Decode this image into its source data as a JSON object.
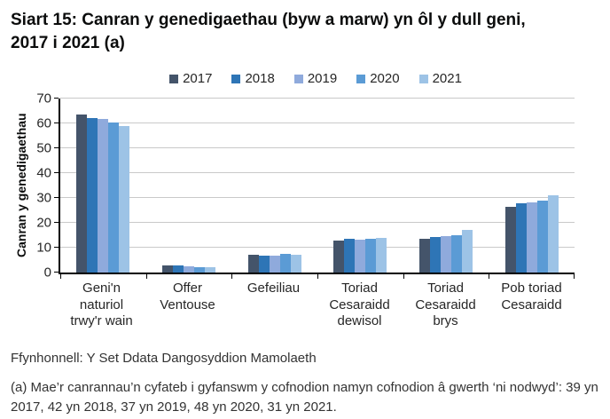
{
  "page": {
    "title": "Siart 15: Canran y genedigaethau (byw a marw) yn ôl y dull geni, 2017 i 2021 (a)",
    "source": "Ffynhonnell: Y Set Ddata Dangosyddion Mamolaeth",
    "footnote": "(a) Mae’r canrannau’n cyfateb i gyfanswm y cofnodion namyn cofnodion â gwerth ‘ni nodwyd’: 39 yn 2017, 42 yn 2018, 37 yn 2019, 48 yn 2020, 31 yn 2021."
  },
  "chart_data": {
    "type": "bar",
    "title": "Siart 15: Canran y genedigaethau (byw a marw) yn ôl y dull geni, 2017 i 2021 (a)",
    "xlabel": "",
    "ylabel": "Canran y genedigaethau",
    "ylim": [
      0,
      70
    ],
    "yticks": [
      0,
      10,
      20,
      30,
      40,
      50,
      60,
      70
    ],
    "grid": true,
    "legend_position": "top",
    "categories": [
      "Geni'n\nnaturiol\ntrwy'r wain",
      "Offer\nVentouse",
      "Gefeiliau",
      "Toriad\nCesaraidd\ndewisol",
      "Toriad\nCesaraidd\nbrys",
      "Pob toriad\nCesaraidd"
    ],
    "series": [
      {
        "name": "2017",
        "color": "#44546A",
        "values": [
          63.5,
          2.9,
          7.3,
          12.8,
          13.5,
          26.4
        ]
      },
      {
        "name": "2018",
        "color": "#2E75B6",
        "values": [
          62.4,
          2.8,
          7.0,
          13.5,
          14.5,
          27.9
        ]
      },
      {
        "name": "2019",
        "color": "#8FAADC",
        "values": [
          61.9,
          2.6,
          6.9,
          13.4,
          14.8,
          28.2
        ]
      },
      {
        "name": "2020",
        "color": "#5B9BD5",
        "values": [
          60.4,
          2.4,
          7.6,
          13.8,
          15.2,
          29.0
        ]
      },
      {
        "name": "2021",
        "color": "#9DC3E6",
        "values": [
          59.0,
          2.3,
          7.2,
          14.1,
          17.1,
          31.2
        ]
      }
    ],
    "colors": {
      "grid": "#C9C9C9",
      "axis": "#000000",
      "text": "#262626"
    }
  }
}
